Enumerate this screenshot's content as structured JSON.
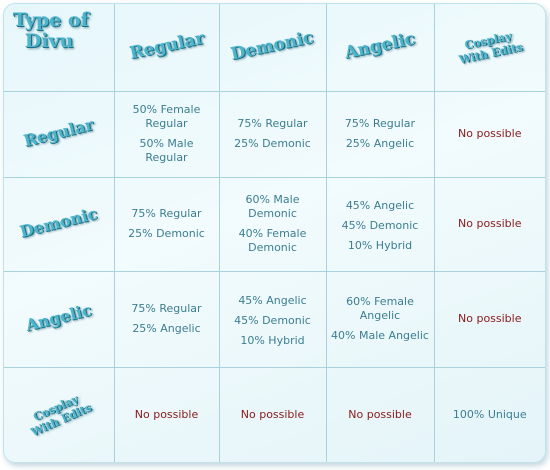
{
  "header": {
    "corner": [
      "Type of",
      "Divu"
    ],
    "columns": [
      "Regular",
      "Demonic",
      "Angelic",
      [
        "Cosplay",
        "With Edits"
      ]
    ]
  },
  "rows": [
    {
      "label": "Regular",
      "cells": [
        [
          "50% Female Regular",
          "50% Male Regular"
        ],
        [
          "75% Regular",
          "25% Demonic"
        ],
        [
          "75% Regular",
          "25% Angelic"
        ],
        [
          "No possible"
        ]
      ]
    },
    {
      "label": "Demonic",
      "cells": [
        [
          "75% Regular",
          "25% Demonic"
        ],
        [
          "60% Male Demonic",
          "40% Female Demonic"
        ],
        [
          "45% Angelic",
          "45% Demonic",
          "10% Hybrid"
        ],
        [
          "No possible"
        ]
      ]
    },
    {
      "label": "Angelic",
      "cells": [
        [
          "75% Regular",
          "25% Angelic"
        ],
        [
          "45% Angelic",
          "45% Demonic",
          "10% Hybrid"
        ],
        [
          "60% Female Angelic",
          "40% Male Angelic"
        ],
        [
          "No possible"
        ]
      ]
    },
    {
      "label": [
        "Cosplay",
        "With Edits"
      ],
      "cells": [
        [
          "No possible"
        ],
        [
          "No possible"
        ],
        [
          "No possible"
        ],
        [
          "100% Unique"
        ]
      ]
    }
  ],
  "colors": {
    "header_text": "#4bb5cc",
    "cell_text": "#3c7e91",
    "not_possible": "#8a1a1a",
    "grid": "#a9d3dc"
  }
}
